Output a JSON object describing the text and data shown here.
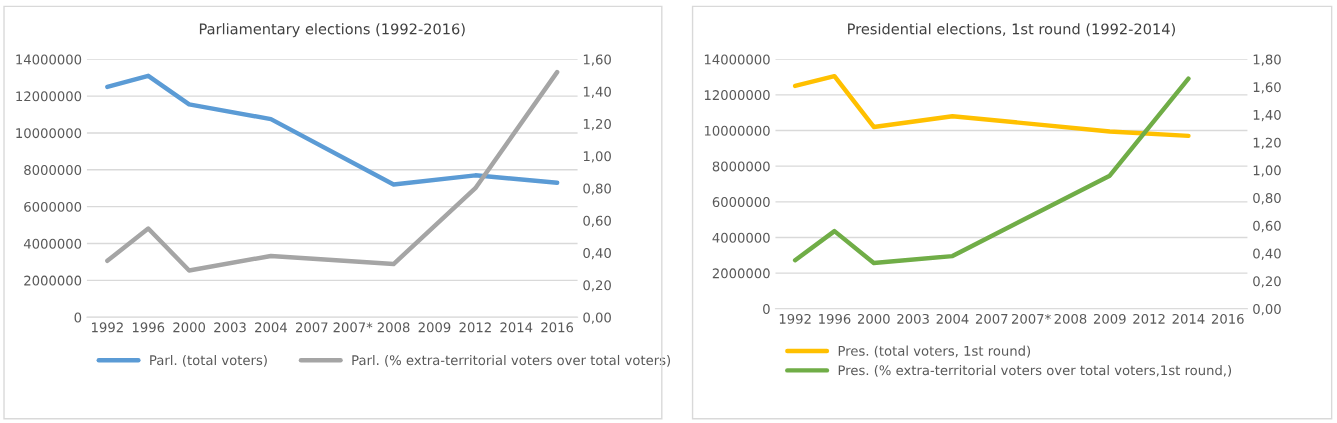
{
  "chart_data": [
    {
      "type": "line",
      "title": "Parliamentary elections (1992-2016)",
      "categories": [
        "1992",
        "1996",
        "2000",
        "2003",
        "2004",
        "2007",
        "2007*",
        "2008",
        "2009",
        "2012",
        "2014",
        "2016"
      ],
      "series": [
        {
          "name": "Parl. (total voters)",
          "color": "#5b9bd5",
          "values": [
            12500000,
            13100000,
            11550000,
            null,
            10750000,
            null,
            null,
            7200000,
            null,
            7700000,
            null,
            7300000
          ]
        },
        {
          "name": "Parl. (% extra-territorial voters over total voters)",
          "color": "#a5a5a5",
          "axis": "y2",
          "values": [
            0.35,
            0.55,
            0.29,
            null,
            0.38,
            null,
            null,
            0.33,
            null,
            0.8,
            null,
            1.52
          ]
        }
      ],
      "ylim": [
        0,
        14000000
      ],
      "yticks": [
        0,
        2000000,
        4000000,
        6000000,
        8000000,
        10000000,
        12000000,
        14000000
      ],
      "y2lim": [
        0,
        1.6
      ],
      "y2ticks": [
        {
          "value": 0,
          "label": "0,00"
        },
        {
          "value": 0.2,
          "label": "0,20"
        },
        {
          "value": 0.4,
          "label": "0,40"
        },
        {
          "value": 0.6,
          "label": "0,60"
        },
        {
          "value": 0.8,
          "label": "0,80"
        },
        {
          "value": 1.0,
          "label": "1,00"
        },
        {
          "value": 1.2,
          "label": "1,20"
        },
        {
          "value": 1.4,
          "label": "1,40"
        },
        {
          "value": 1.6,
          "label": "1,60"
        }
      ],
      "grid": "y",
      "legend": "bottom"
    },
    {
      "type": "line",
      "title": "Presidential elections, 1st round (1992-2014)",
      "categories": [
        "1992",
        "1996",
        "2000",
        "2003",
        "2004",
        "2007",
        "2007*",
        "2008",
        "2009",
        "2012",
        "2014",
        "2016"
      ],
      "series": [
        {
          "name": "Pres. (total voters, 1st round)",
          "color": "#ffc000",
          "values": [
            12500000,
            13050000,
            10200000,
            null,
            10800000,
            null,
            null,
            null,
            9950000,
            null,
            9700000,
            null
          ]
        },
        {
          "name": "Pres. (% extra-territorial voters over total voters,1st round,)",
          "color": "#70ad47",
          "axis": "y2",
          "values": [
            0.35,
            0.56,
            0.33,
            null,
            0.38,
            null,
            null,
            null,
            0.96,
            null,
            1.66,
            null
          ]
        }
      ],
      "ylim": [
        0,
        14000000
      ],
      "yticks": [
        0,
        2000000,
        4000000,
        6000000,
        8000000,
        10000000,
        12000000,
        14000000
      ],
      "y2lim": [
        0,
        1.8
      ],
      "y2ticks": [
        {
          "value": 0,
          "label": "0,00"
        },
        {
          "value": 0.2,
          "label": "0,20"
        },
        {
          "value": 0.4,
          "label": "0,40"
        },
        {
          "value": 0.6,
          "label": "0,60"
        },
        {
          "value": 0.8,
          "label": "0,80"
        },
        {
          "value": 1.0,
          "label": "1,00"
        },
        {
          "value": 1.2,
          "label": "1,20"
        },
        {
          "value": 1.4,
          "label": "1,40"
        },
        {
          "value": 1.6,
          "label": "1,60"
        },
        {
          "value": 1.8,
          "label": "1,80"
        }
      ],
      "grid": "y",
      "legend": "bottom"
    }
  ]
}
